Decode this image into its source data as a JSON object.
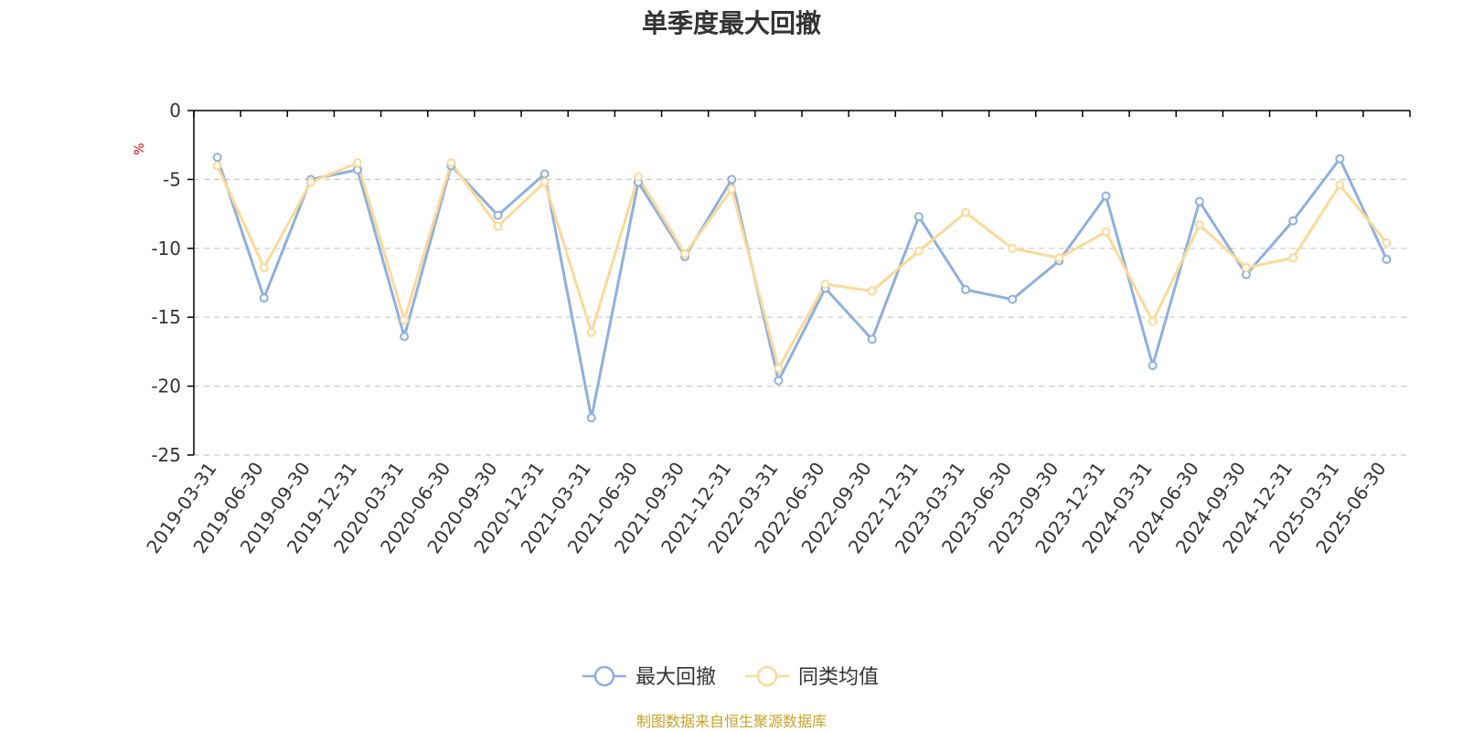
{
  "colors": {
    "series1": "#8eb0dc",
    "series2": "#fbd999",
    "axis": "#000000",
    "grid": "#c8c8c8",
    "unit": "#e00000",
    "source": "#c9a227"
  },
  "chart_data": {
    "type": "line",
    "title": "单季度最大回撤",
    "ylabel": "%",
    "ylim": [
      -25,
      0
    ],
    "yticks": [
      0,
      -5,
      -10,
      -15,
      -20,
      -25
    ],
    "grid": "horizontal-dashed",
    "legend_position": "bottom-center",
    "categories": [
      "2019-03-31",
      "2019-06-30",
      "2019-09-30",
      "2019-12-31",
      "2020-03-31",
      "2020-06-30",
      "2020-09-30",
      "2020-12-31",
      "2021-03-31",
      "2021-06-30",
      "2021-09-30",
      "2021-12-31",
      "2022-03-31",
      "2022-06-30",
      "2022-09-30",
      "2022-12-31",
      "2023-03-31",
      "2023-06-30",
      "2023-09-30",
      "2023-12-31",
      "2024-03-31",
      "2024-06-30",
      "2024-09-30",
      "2024-12-31",
      "2025-03-31",
      "2025-06-30"
    ],
    "series": [
      {
        "name": "最大回撤",
        "color": "#8eb0dc",
        "values": [
          -3.4,
          -13.6,
          -5.0,
          -4.3,
          -16.4,
          -4.0,
          -7.6,
          -4.6,
          -22.3,
          -5.2,
          -10.6,
          -5.0,
          -19.6,
          -12.9,
          -16.6,
          -7.7,
          -13.0,
          -13.7,
          -10.9,
          -6.2,
          -18.5,
          -6.6,
          -11.9,
          -8.0,
          -3.5,
          -10.8
        ]
      },
      {
        "name": "同类均值",
        "color": "#fbd999",
        "values": [
          -4.0,
          -11.4,
          -5.2,
          -3.8,
          -15.2,
          -3.8,
          -8.4,
          -5.2,
          -16.1,
          -4.8,
          -10.4,
          -5.7,
          -18.7,
          -12.6,
          -13.1,
          -10.2,
          -7.4,
          -10.0,
          -10.7,
          -8.8,
          -15.3,
          -8.3,
          -11.4,
          -10.7,
          -5.4,
          -9.6
        ]
      }
    ]
  },
  "source_note": "制图数据来自恒生聚源数据库"
}
